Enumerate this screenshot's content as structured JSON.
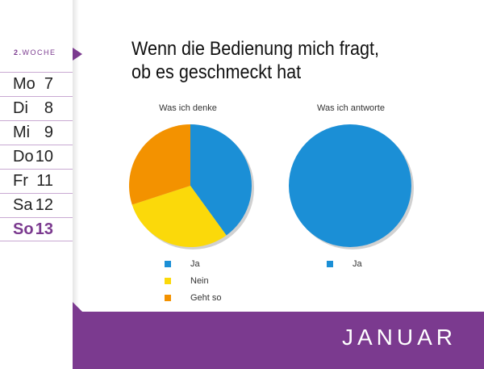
{
  "sidebar": {
    "week_number": "2.",
    "week_word": "WOCHE",
    "days": [
      {
        "name": "Mo",
        "date": "7"
      },
      {
        "name": "Di",
        "date": "8"
      },
      {
        "name": "Mi",
        "date": "9"
      },
      {
        "name": "Do",
        "date": "10"
      },
      {
        "name": "Fr",
        "date": "11"
      },
      {
        "name": "Sa",
        "date": "12"
      },
      {
        "name": "So",
        "date": "13"
      }
    ]
  },
  "title_line1": "Wenn die Bedienung mich fragt,",
  "title_line2": "ob es geschmeckt hat",
  "month": "JANUAR",
  "colors": {
    "ja": "#1b8fd6",
    "nein": "#fbd90a",
    "geht_so": "#f39200",
    "accent": "#7b3a8f"
  },
  "chart_data": [
    {
      "type": "pie",
      "title": "Was ich denke",
      "categories": [
        "Ja",
        "Nein",
        "Geht so"
      ],
      "values": [
        40,
        30,
        30
      ],
      "legend": "bottom"
    },
    {
      "type": "pie",
      "title": "Was ich antworte",
      "categories": [
        "Ja"
      ],
      "values": [
        100
      ],
      "legend": "bottom"
    }
  ]
}
